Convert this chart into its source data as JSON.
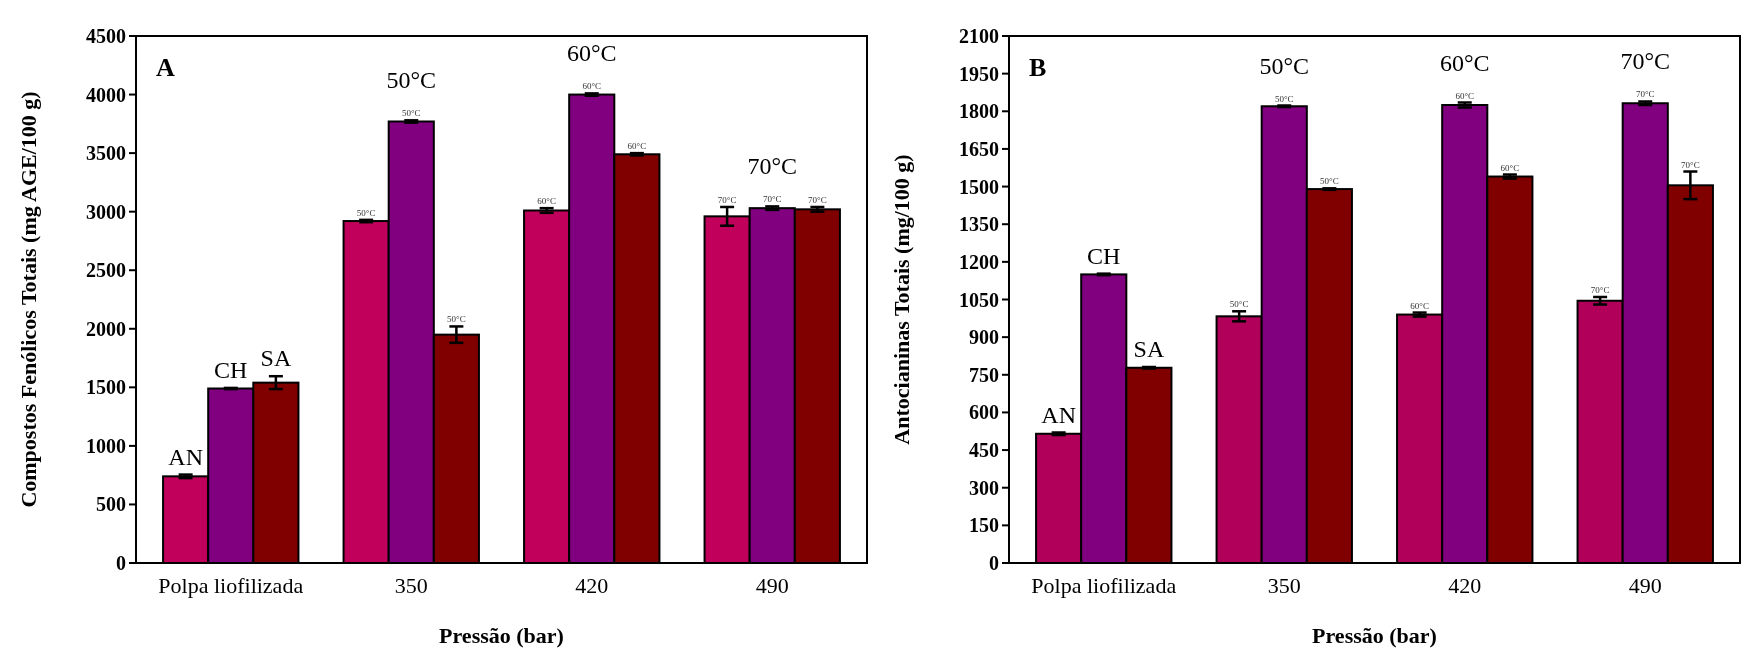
{
  "chart_data": [
    {
      "type": "bar",
      "ylabel": "Compostos Fenólicos Totais (mg AGE/100 g)",
      "xlabel": "Pressão (bar)",
      "categories": [
        "Polpa liofilizada",
        "350",
        "420",
        "490"
      ],
      "ylim": [
        0,
        4500
      ],
      "yticks": [
        0,
        500,
        1000,
        1500,
        2000,
        2500,
        3000,
        3500,
        4000,
        4500
      ],
      "series": [
        {
          "name": "AN",
          "color": "#c0005a",
          "values": [
            740,
            2920,
            3010,
            2960
          ],
          "errors": [
            15,
            10,
            20,
            80
          ]
        },
        {
          "name": "CH",
          "color": "#800080",
          "values": [
            1490,
            3770,
            4000,
            3030
          ],
          "errors": [
            5,
            10,
            10,
            15
          ]
        },
        {
          "name": "SA",
          "color": "#800000",
          "values": [
            1540,
            1950,
            3490,
            3020
          ],
          "errors": [
            55,
            70,
            10,
            20
          ]
        }
      ],
      "annotations": [
        "A",
        "50°C",
        "60°C",
        "70°C",
        "50°C",
        "50°C",
        "50°C",
        "60°C",
        "60°C",
        "60°C",
        "70°C",
        "70°C",
        "70°C"
      ]
    },
    {
      "type": "bar",
      "ylabel": "Antocianinas Totais (mg/100 g)",
      "xlabel": "Pressão (bar)",
      "categories": [
        "Polpa liofilizada",
        "350",
        "420",
        "490"
      ],
      "ylim": [
        0,
        2100
      ],
      "yticks": [
        0,
        150,
        300,
        450,
        600,
        750,
        900,
        1050,
        1200,
        1350,
        1500,
        1650,
        1800,
        1950,
        2100
      ],
      "series": [
        {
          "name": "AN",
          "color": "#b0005a",
          "values": [
            515,
            983,
            990,
            1045
          ],
          "errors": [
            5,
            20,
            8,
            15
          ]
        },
        {
          "name": "CH",
          "color": "#800080",
          "values": [
            1150,
            1820,
            1825,
            1832
          ],
          "errors": [
            3,
            3,
            10,
            7
          ]
        },
        {
          "name": "SA",
          "color": "#800000",
          "values": [
            778,
            1490,
            1540,
            1505
          ],
          "errors": [
            3,
            3,
            8,
            55
          ]
        }
      ],
      "annotations": [
        "B",
        "50°C",
        "60°C",
        "70°C",
        "50°C",
        "50°C",
        "50°C",
        "60°C",
        "60°C",
        "60°C",
        "70°C",
        "70°C",
        "70°C"
      ]
    }
  ]
}
